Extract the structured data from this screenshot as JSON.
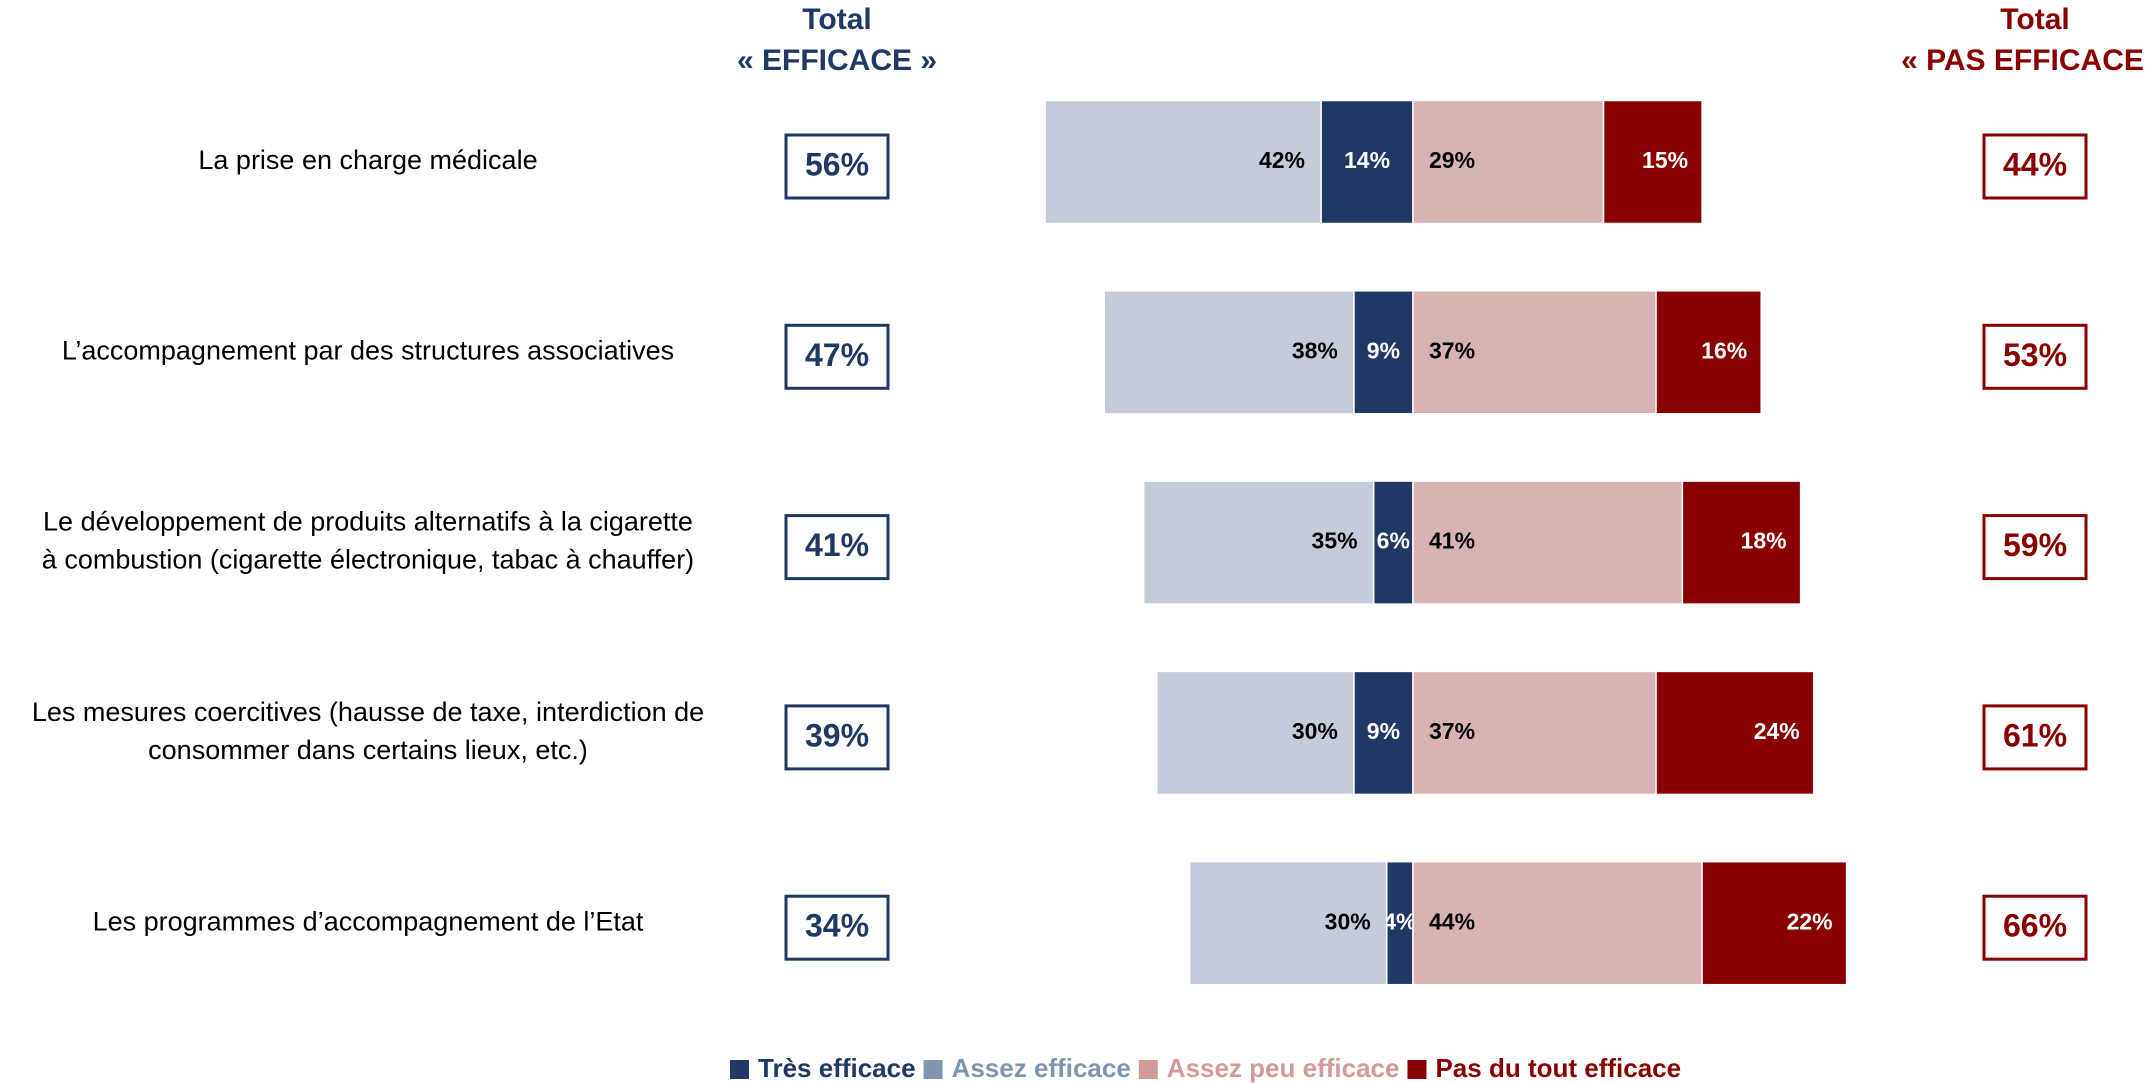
{
  "chart_data": {
    "type": "diverging-bar",
    "categories": [
      [
        "La prise en charge médicale"
      ],
      [
        "L’accompagnement par des structures associatives"
      ],
      [
        "Le développement de produits alternatifs à la cigarette",
        "à combustion (cigarette électronique, tabac à chauffer)"
      ],
      [
        "Les mesures coercitives (hausse de taxe, interdiction de",
        "consommer dans certains lieux, etc.)"
      ],
      [
        "Les programmes d’accompagnement de l’Etat"
      ]
    ],
    "series": [
      {
        "name": "Très efficace",
        "color": "#203864",
        "text_color": "#203864",
        "label_color": "#ffffff",
        "side": "left",
        "values": [
          14,
          9,
          6,
          9,
          4
        ],
        "value_labels": [
          "14%",
          "9%",
          "6%",
          "9%",
          "4%"
        ]
      },
      {
        "name": "Assez efficace",
        "color": "#c3ccd8",
        "text_color": "#7f96b3",
        "label_color": "#000000",
        "side": "left",
        "values": [
          42,
          38,
          35,
          30,
          30
        ],
        "value_labels": [
          "42%",
          "38%",
          "35%",
          "30%",
          "30%"
        ]
      },
      {
        "name": "Assez peu efficace",
        "color": "#d9b3b3",
        "text_color": "#d39a9a",
        "label_color": "#000000",
        "side": "right",
        "values": [
          29,
          37,
          41,
          37,
          44
        ],
        "value_labels": [
          "29%",
          "37%",
          "41%",
          "37%",
          "44%"
        ]
      },
      {
        "name": "Pas du tout efficace",
        "color": "#880000",
        "text_color": "#880000",
        "label_color": "#ffffff",
        "side": "right",
        "values": [
          15,
          16,
          18,
          24,
          22
        ],
        "value_labels": [
          "15%",
          "16%",
          "18%",
          "24%",
          "22%"
        ]
      }
    ],
    "totals": [
      {
        "title": "Total",
        "subtitle": "« EFFICACE »",
        "color": "#203864",
        "values": [
          56,
          47,
          41,
          39,
          34
        ],
        "value_labels": [
          "56%",
          "47%",
          "41%",
          "39%",
          "34%"
        ]
      },
      {
        "title": "Total",
        "subtitle": "« PAS EFFICACE »",
        "color": "#880000",
        "values": [
          44,
          53,
          59,
          61,
          66
        ],
        "value_labels": [
          "44%",
          "53%",
          "59%",
          "61%",
          "66%"
        ]
      }
    ]
  }
}
